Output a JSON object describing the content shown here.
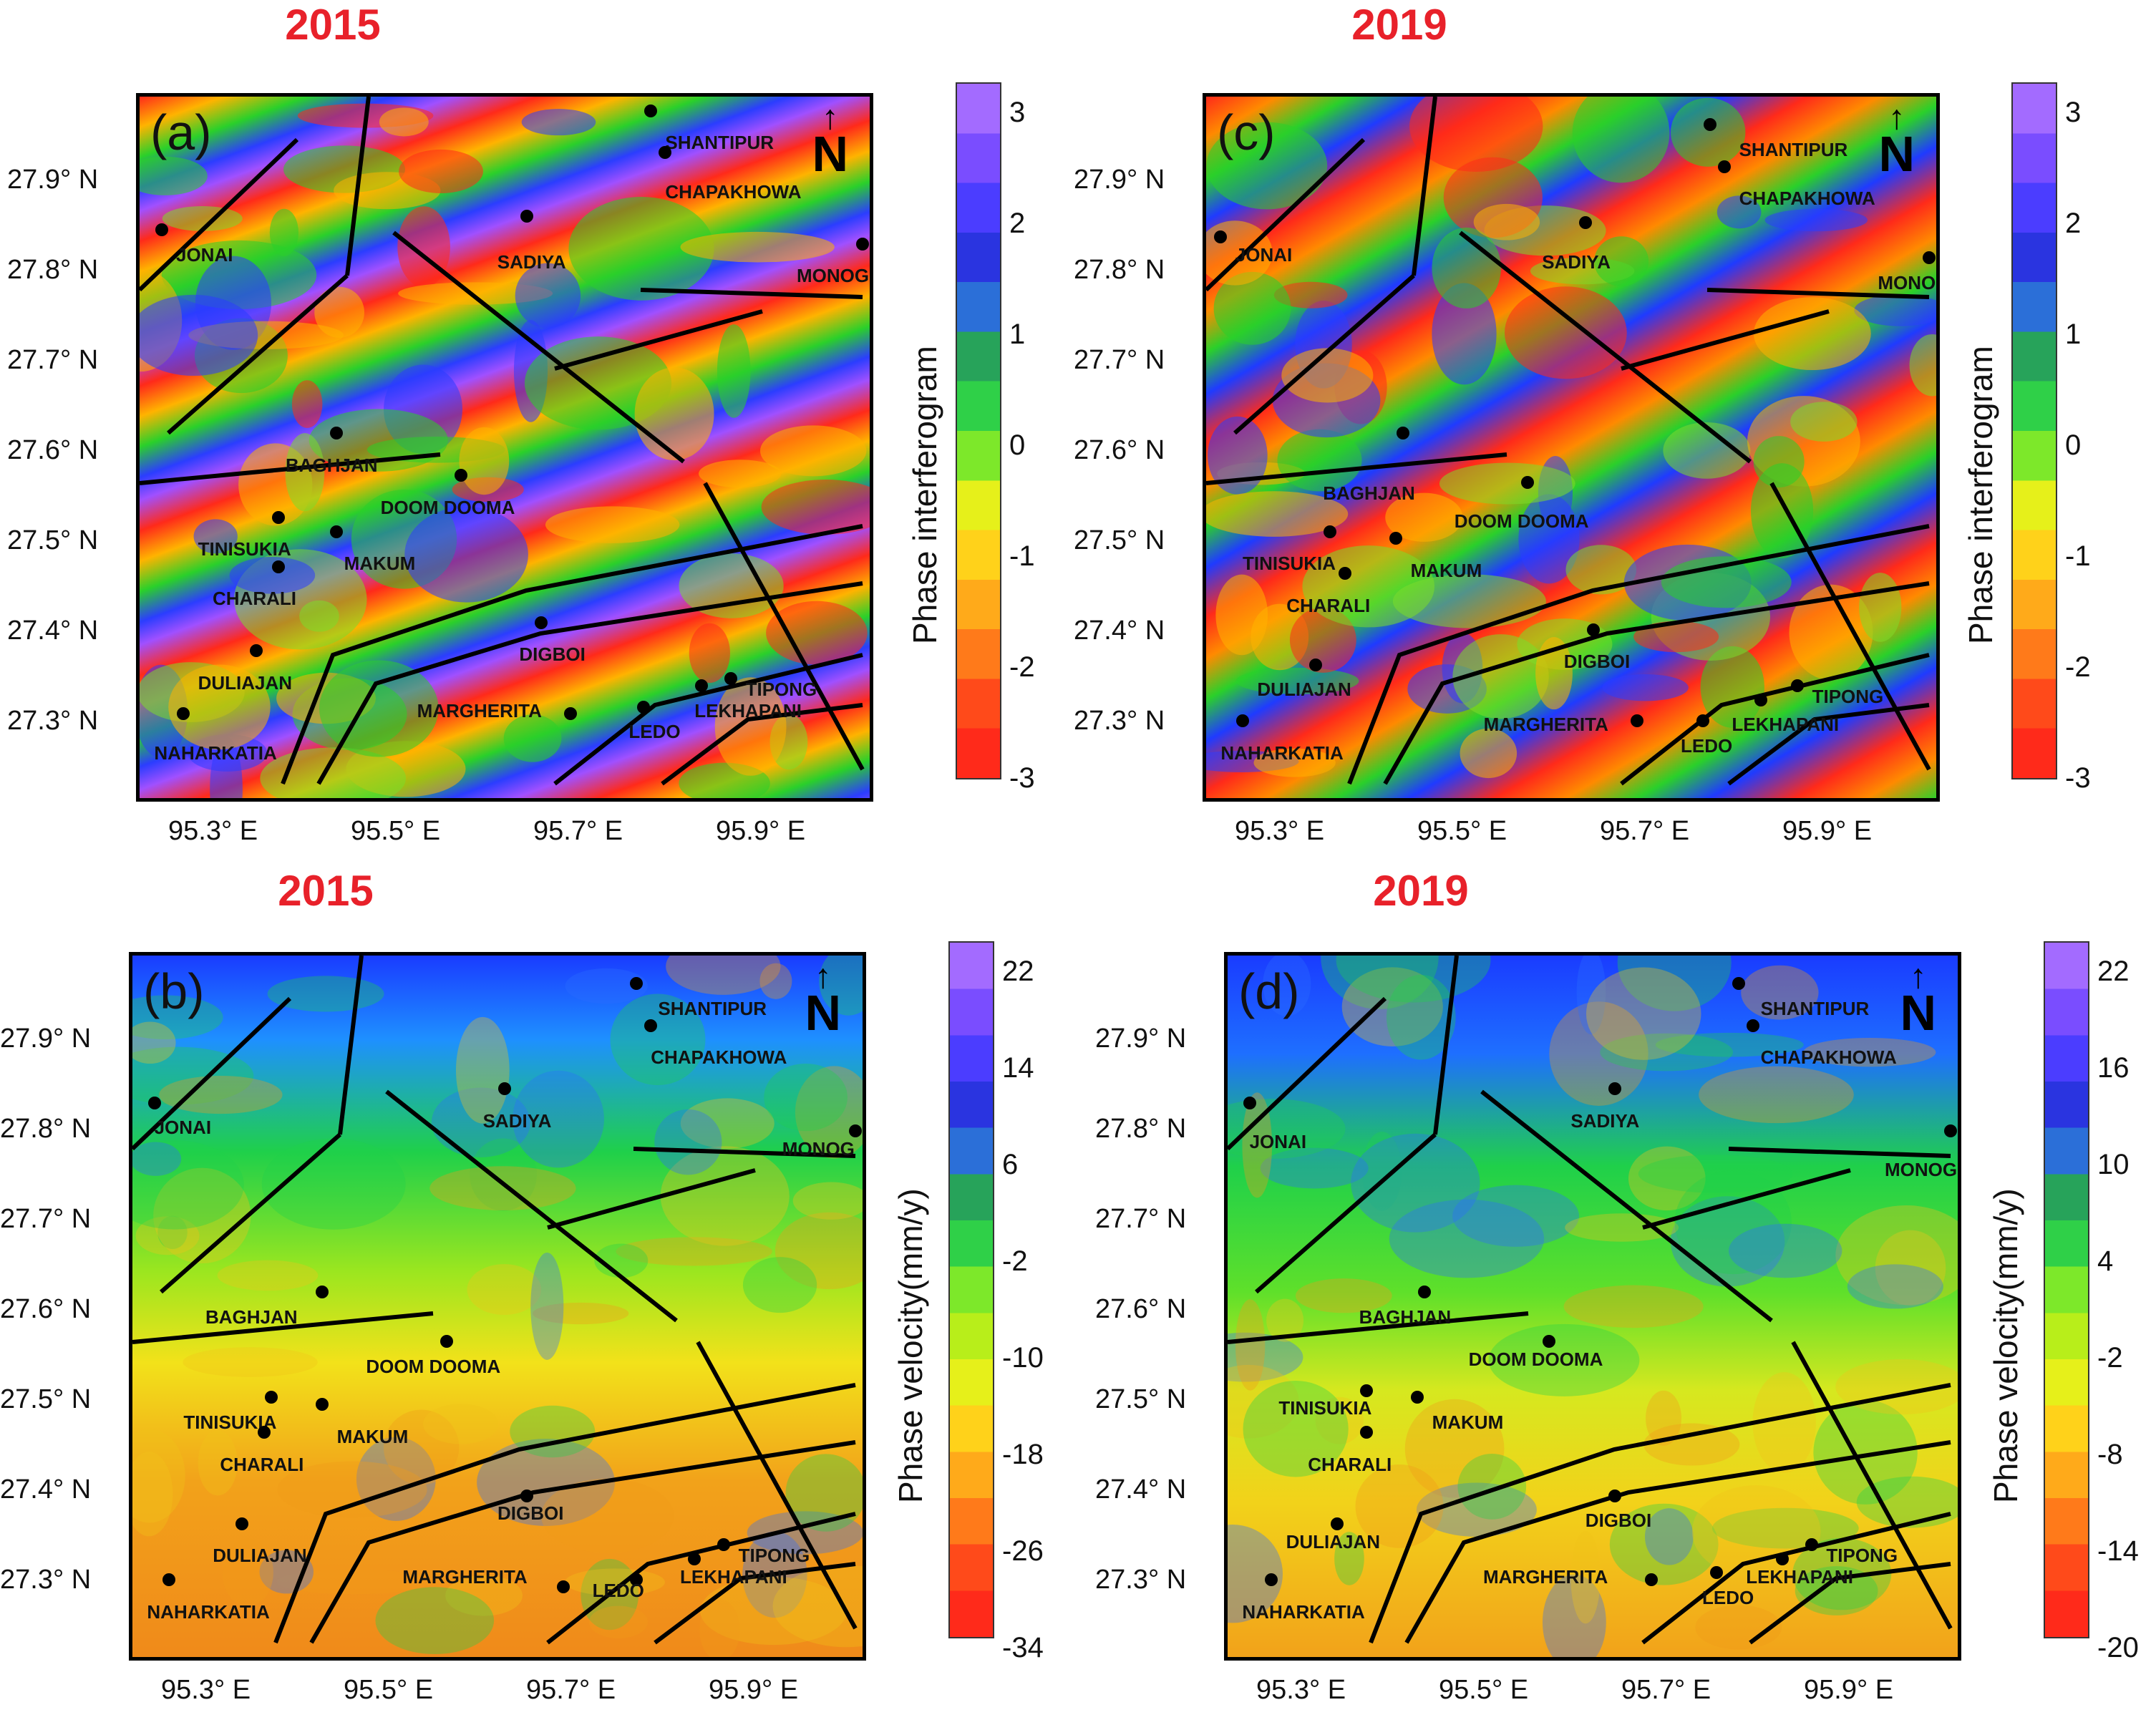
{
  "panels": [
    {
      "id": "a",
      "label": "(a)",
      "year": "2015",
      "cbar_title": "Phase interferogram",
      "cbar_ticks": [
        "3",
        "2",
        "1",
        "0",
        "-1",
        "-2",
        "-3"
      ],
      "cbar_range": [
        -3,
        3
      ],
      "kind": "interferogram"
    },
    {
      "id": "c",
      "label": "(c)",
      "year": "2019",
      "cbar_title": "Phase interferogram",
      "cbar_ticks": [
        "3",
        "2",
        "1",
        "0",
        "-1",
        "-2",
        "-3"
      ],
      "cbar_range": [
        -3,
        3
      ],
      "kind": "interferogram"
    },
    {
      "id": "b",
      "label": "(b)",
      "year": "2015",
      "cbar_title": "Phase velocity(mm/y)",
      "cbar_ticks": [
        "22",
        "14",
        "6",
        "-2",
        "-10",
        "-18",
        "-26",
        "-34"
      ],
      "cbar_range": [
        -34,
        22
      ],
      "kind": "velocity"
    },
    {
      "id": "d",
      "label": "(d)",
      "year": "2019",
      "cbar_title": "Phase velocity(mm/y)",
      "cbar_ticks": [
        "22",
        "16",
        "10",
        "4",
        "-2",
        "-8",
        "-14",
        "-20"
      ],
      "cbar_range": [
        -20,
        22
      ],
      "kind": "velocity"
    }
  ],
  "axes": {
    "lat_labels": [
      "27.9° N",
      "27.8° N",
      "27.7° N",
      "27.6° N",
      "27.5° N",
      "27.4° N",
      "27.3° N"
    ],
    "lon_labels": [
      "95.3° E",
      "95.5° E",
      "95.7° E",
      "95.9° E"
    ]
  },
  "north_symbol": "N",
  "towns": [
    "SHANTIPUR",
    "CHAPAKHOWA",
    "JONAI",
    "SADIYA",
    "MONOG",
    "BAGHJAN",
    "DOOM DOOMA",
    "TINISUKIA",
    "MAKUM",
    "CHARALI",
    "DIGBOI",
    "DULIAJAN",
    "MARGHERITA",
    "TIPONG",
    "LEKHAPANI",
    "LEDO",
    "NAHARKATIA"
  ],
  "colors": {
    "year": "#e8212a",
    "fault": "#000000"
  }
}
